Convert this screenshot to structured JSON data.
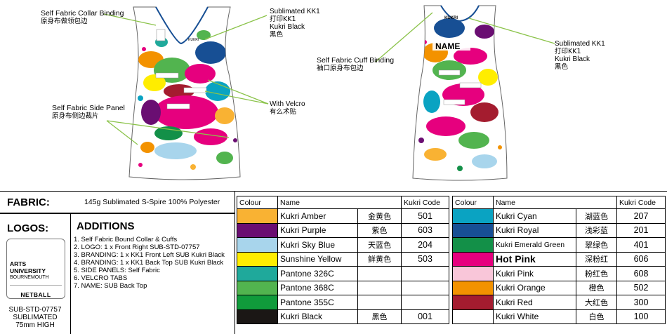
{
  "callouts": {
    "collar": {
      "en": "Self Fabric Collar Binding",
      "cn": "原身布做领包边"
    },
    "side_panel": {
      "en": "Self Fabric Side Panel",
      "cn": "原身布侧边裁片"
    },
    "kk1_front": {
      "l1": "Sublimated KK1",
      "l2": "打印KK1",
      "l3": "Kukri Black",
      "l4": "黑色"
    },
    "velcro": {
      "en": "With Velcro",
      "cn": "有么术贴"
    },
    "cuff": {
      "en": "Self Fabric Cuff Binding",
      "cn": "袖口原身布包边"
    },
    "kk1_back": {
      "l1": "Sublimated KK1",
      "l2": "打印KK1",
      "l3": "Kukri Black",
      "l4": "黑色"
    }
  },
  "back_print": {
    "name": "NAME",
    "brand": "KUKRI"
  },
  "fabric": {
    "label": "FABRIC:",
    "text": "145g Sublimated S-Spire 100% Polyester"
  },
  "logos": {
    "label": "LOGOS:",
    "card": {
      "line1": "ARTS",
      "line2": "UNIVERSITY",
      "line3": "BOURNEMOUTH",
      "line4": "NETBALL"
    },
    "caption": [
      "SUB-STD-07757",
      "SUBLIMATED",
      "75mm HIGH"
    ]
  },
  "additions": {
    "label": "ADDITIONS",
    "items": [
      "1. Self Fabric Bound Collar & Cuffs",
      "2. LOGO: 1 x Front Right SUB-STD-07757",
      "3. BRANDING: 1 x KK1 Front Left SUB Kukri Black",
      "4. BRANDING: 1 x KK1 Back Top SUB Kukri Black",
      "5. SIDE PANELS: Self Fabric",
      "6. VELCRO TABS",
      "7. NAME: SUB Back Top"
    ]
  },
  "colour_table_headers": {
    "colour": "Colour",
    "name": "Name",
    "code": "Kukri Code"
  },
  "colours_left": [
    {
      "swatch": "#f9b233",
      "name": "Kukri Amber",
      "cn": "金黄色",
      "code": "501"
    },
    {
      "swatch": "#6a0e72",
      "name": "Kukri Purple",
      "cn": "紫色",
      "code": "603"
    },
    {
      "swatch": "#a8d5ec",
      "name": "Kukri Sky Blue",
      "cn": "天蓝色",
      "code": "204"
    },
    {
      "swatch": "#ffed00",
      "name": "Sunshine Yellow",
      "cn": "鲜黄色",
      "code": "503"
    },
    {
      "swatch": "#1fa99b",
      "name": "Pantone 326C",
      "cn": "",
      "code": ""
    },
    {
      "swatch": "#52b44f",
      "name": "Pantone 368C",
      "cn": "",
      "code": ""
    },
    {
      "swatch": "#109b3b",
      "name": "Pantone 355C",
      "cn": "",
      "code": ""
    },
    {
      "swatch": "#1b1715",
      "name": "Kukri Black",
      "cn": "黑色",
      "code": "001"
    }
  ],
  "colours_right": [
    {
      "swatch": "#0aa3c2",
      "name": "Kukri Cyan",
      "cn": "湖蓝色",
      "code": "207"
    },
    {
      "swatch": "#174f94",
      "name": "Kukri Royal",
      "cn": "浅彩蓝",
      "code": "201"
    },
    {
      "swatch": "#139048",
      "name": "Kukri Emerald Green",
      "cn": "翠绿色",
      "code": "401"
    },
    {
      "swatch": "#e6007e",
      "name": "Hot Pink",
      "cn": "深粉红",
      "code": "606"
    },
    {
      "swatch": "#f9c6d9",
      "name": "Kukri Pink",
      "cn": "粉红色",
      "code": "608"
    },
    {
      "swatch": "#f39200",
      "name": "Kukri Orange",
      "cn": "橙色",
      "code": "502"
    },
    {
      "swatch": "#a41c2f",
      "name": "Kukri Red",
      "cn": "大红色",
      "code": "300"
    },
    {
      "swatch": "#ffffff",
      "name": "Kukri White",
      "cn": "白色",
      "code": "100"
    }
  ]
}
